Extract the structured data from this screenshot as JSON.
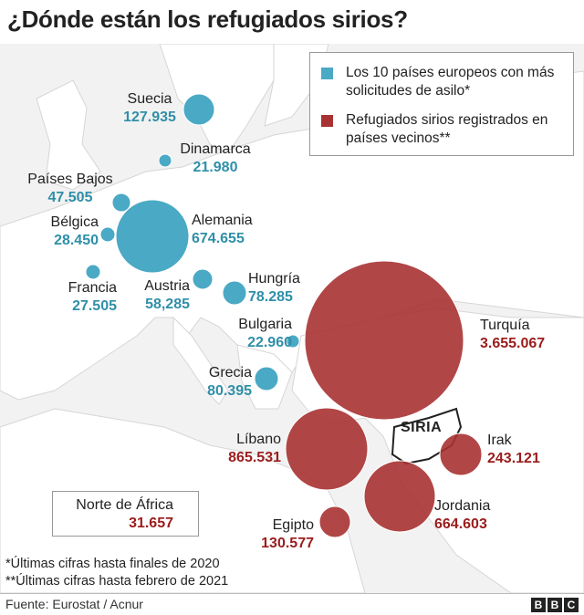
{
  "title": "¿Dónde están los refugiados sirios?",
  "colors": {
    "europe": "#4aa9c4",
    "neighbors": "#a83232",
    "europe_text": "#2f8fa8",
    "neighbors_text": "#9b1c1c",
    "land": "#ffffff",
    "sea": "#f2f2f2"
  },
  "legend": {
    "europe": "Los 10 países europeos con más solicitudes de asilo*",
    "neighbors": "Refugiados sirios registrados en países vecinos**"
  },
  "countries": {
    "suecia": {
      "name": "Suecia",
      "value": "127.935"
    },
    "dinamarca": {
      "name": "Dinamarca",
      "value": "21.980"
    },
    "paises_bajos": {
      "name": "Países Bajos",
      "value": "47.505"
    },
    "belgica": {
      "name": "Bélgica",
      "value": "28.450"
    },
    "alemania": {
      "name": "Alemania",
      "value": "674.655"
    },
    "francia": {
      "name": "Francia",
      "value": "27.505"
    },
    "austria": {
      "name": "Austria",
      "value": "58,285"
    },
    "hungria": {
      "name": "Hungría",
      "value": "78.285"
    },
    "bulgaria": {
      "name": "Bulgaria",
      "value": "22.960"
    },
    "grecia": {
      "name": "Grecia",
      "value": "80.395"
    },
    "turquia": {
      "name": "Turquía",
      "value": "3.655.067"
    },
    "libano": {
      "name": "Líbano",
      "value": "865.531"
    },
    "irak": {
      "name": "Irak",
      "value": "243.121"
    },
    "jordania": {
      "name": "Jordania",
      "value": "664.603"
    },
    "egipto": {
      "name": "Egipto",
      "value": "130.577"
    },
    "norte_africa": {
      "name": "Norte de África",
      "value": "31.657"
    }
  },
  "siria_label": "SIRIA",
  "notes": [
    "*Últimas cifras hasta finales de 2020",
    "**Últimas cifras hasta febrero de 2021"
  ],
  "source": "Fuente: Eurostat / Acnur",
  "brand": [
    "B",
    "B",
    "C"
  ]
}
